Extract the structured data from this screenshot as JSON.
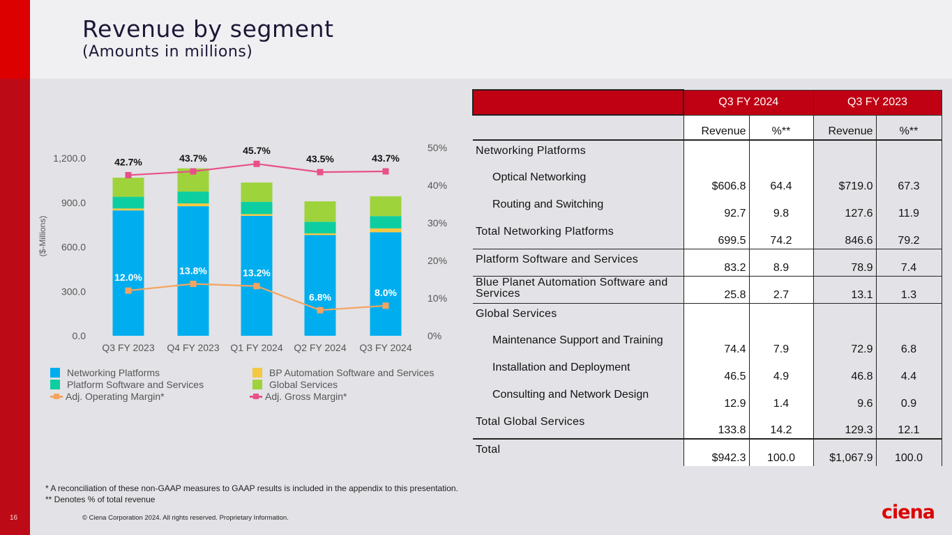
{
  "slide": {
    "title": "Revenue by segment",
    "subtitle": "(Amounts in millions)",
    "page_number": "16",
    "footnotes": [
      "* A reconciliation of these non-GAAP measures to GAAP results is included in the appendix to this presentation.",
      "** Denotes % of total revenue"
    ],
    "copyright": "© Ciena Corporation 2024. All rights reserved. Proprietary Information.",
    "logo": "ciena",
    "colors": {
      "brand_red": "#c00013",
      "strip_red": "#dc0000"
    }
  },
  "chart_data": {
    "type": "bar",
    "stacked": true,
    "categories": [
      "Q3 FY 2023",
      "Q4 FY 2023",
      "Q1 FY 2024",
      "Q2 FY 2024",
      "Q3 FY 2024"
    ],
    "series": [
      {
        "name": "Networking Platforms",
        "color": "#00aeef",
        "values": [
          846.6,
          875,
          810,
          680,
          699.5
        ]
      },
      {
        "name": "BP Automation Software and Services",
        "color": "#f5c842",
        "values": [
          13.1,
          19,
          12,
          12,
          25.8
        ]
      },
      {
        "name": "Platform Software and Services",
        "color": "#0dcea0",
        "values": [
          78.9,
          80,
          83,
          78,
          83.2
        ]
      },
      {
        "name": "Global Services",
        "color": "#9fd33c",
        "values": [
          129.3,
          157,
          130,
          138,
          133.8
        ]
      }
    ],
    "lines": [
      {
        "name": "Adj. Operating Margin*",
        "color": "#f4a460",
        "axis": "right",
        "values": [
          12.0,
          13.8,
          13.2,
          6.8,
          8.0
        ],
        "labels": [
          "12.0%",
          "13.8%",
          "13.2%",
          "6.8%",
          "8.0%"
        ]
      },
      {
        "name": "Adj. Gross Margin*",
        "color": "#e8508a",
        "axis": "right",
        "values": [
          42.7,
          43.7,
          45.7,
          43.5,
          43.7
        ],
        "labels": [
          "42.7%",
          "43.7%",
          "45.7%",
          "43.5%",
          "43.7%"
        ]
      }
    ],
    "ylabel": "($-Millions)",
    "ylim": [
      0,
      1200
    ],
    "yticks": [
      "0.0",
      "300.0",
      "600.0",
      "900.0",
      "1,200.0"
    ],
    "y2lim": [
      0,
      50
    ],
    "y2ticks": [
      "0%",
      "10%",
      "20%",
      "30%",
      "40%",
      "50%"
    ],
    "grid": false,
    "legend": {
      "placement": "bottom",
      "items": [
        {
          "label": "Networking Platforms",
          "kind": "box",
          "color": "#00aeef"
        },
        {
          "label": "BP Automation Software and Services",
          "kind": "box",
          "color": "#f5c842"
        },
        {
          "label": "Platform Software and Services",
          "kind": "box",
          "color": "#0dcea0"
        },
        {
          "label": "Global Services",
          "kind": "box",
          "color": "#9fd33c"
        },
        {
          "label": "Adj. Operating Margin*",
          "kind": "line",
          "color": "#f4a460"
        },
        {
          "label": "Adj. Gross Margin*",
          "kind": "line",
          "color": "#e8508a"
        }
      ]
    }
  },
  "table": {
    "periods": [
      "Q3 FY 2024",
      "Q3 FY 2023"
    ],
    "subheaders": [
      "Revenue",
      "%**",
      "Revenue",
      "%**"
    ],
    "rows": [
      {
        "label": "Networking Platforms",
        "cells": [
          "",
          "",
          "",
          ""
        ]
      },
      {
        "label": "Optical Networking",
        "cells": [
          "$606.8",
          "64.4",
          "$719.0",
          "67.3"
        ]
      },
      {
        "label": "Routing and Switching",
        "cells": [
          "92.7",
          "9.8",
          "127.6",
          "11.9"
        ]
      },
      {
        "label": "Total Networking Platforms",
        "cells": [
          "699.5",
          "74.2",
          "846.6",
          "79.2"
        ]
      },
      {
        "label": "Platform Software and Services",
        "cells": [
          "83.2",
          "8.9",
          "78.9",
          "7.4"
        ]
      },
      {
        "label": "Blue Planet Automation Software and Services",
        "cells": [
          "25.8",
          "2.7",
          "13.1",
          "1.3"
        ]
      },
      {
        "label": "Global Services",
        "cells": [
          "",
          "",
          "",
          ""
        ]
      },
      {
        "label": "Maintenance Support and Training",
        "cells": [
          "74.4",
          "7.9",
          "72.9",
          "6.8"
        ]
      },
      {
        "label": "Installation and Deployment",
        "cells": [
          "46.5",
          "4.9",
          "46.8",
          "4.4"
        ]
      },
      {
        "label": "Consulting and Network Design",
        "cells": [
          "12.9",
          "1.4",
          "9.6",
          "0.9"
        ]
      },
      {
        "label": "Total Global Services",
        "cells": [
          "133.8",
          "14.2",
          "129.3",
          "12.1"
        ]
      },
      {
        "label": "Total",
        "cells": [
          "$942.3",
          "100.0",
          "$1,067.9",
          "100.0"
        ]
      }
    ]
  }
}
